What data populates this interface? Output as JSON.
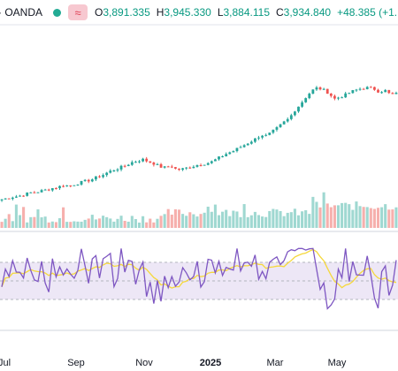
{
  "header": {
    "symbol": "· OANDA",
    "ohlc": [
      {
        "key": "O",
        "value": "3,891.335"
      },
      {
        "key": "H",
        "value": "3,945.330"
      },
      {
        "key": "L",
        "value": "3,884.115"
      },
      {
        "key": "C",
        "value": "3,934.840"
      }
    ],
    "change": "+48.385 (+1.",
    "status_color": "#22ab94",
    "toggle_icon": "wave-icon"
  },
  "colors": {
    "up": "#26a69a",
    "down": "#ef5350",
    "rsi_line": "#7e57c2",
    "rsi_ma": "#f5d83b",
    "rsi_band": "#ede7f6"
  },
  "x_axis": {
    "labels": [
      {
        "text": "Jul",
        "bold": false
      },
      {
        "text": "Sep",
        "bold": false
      },
      {
        "text": "Nov",
        "bold": false
      },
      {
        "text": "2025",
        "bold": true
      },
      {
        "text": "Mar",
        "bold": false
      },
      {
        "text": "May",
        "bold": false
      }
    ]
  },
  "chart_data": {
    "type": "candlestick",
    "price_series": [
      2330,
      2342,
      2355,
      2362,
      2378,
      2395,
      2400,
      2412,
      2425,
      2440,
      2450,
      2470,
      2460,
      2480,
      2495,
      2510,
      2525,
      2550,
      2570,
      2600,
      2620,
      2640,
      2660,
      2690,
      2705,
      2720,
      2700,
      2680,
      2650,
      2640,
      2660,
      2620,
      2625,
      2640,
      2655,
      2670,
      2680,
      2690,
      2720,
      2750,
      2780,
      2800,
      2830,
      2860,
      2890,
      2920,
      2960,
      2950,
      2990,
      3030,
      3080,
      3120,
      3200,
      3260,
      3330,
      3390,
      3420,
      3400,
      3370,
      3310,
      3330,
      3350,
      3380,
      3400,
      3415,
      3420,
      3410,
      3380,
      3395,
      3350,
      3360
    ]
  }
}
